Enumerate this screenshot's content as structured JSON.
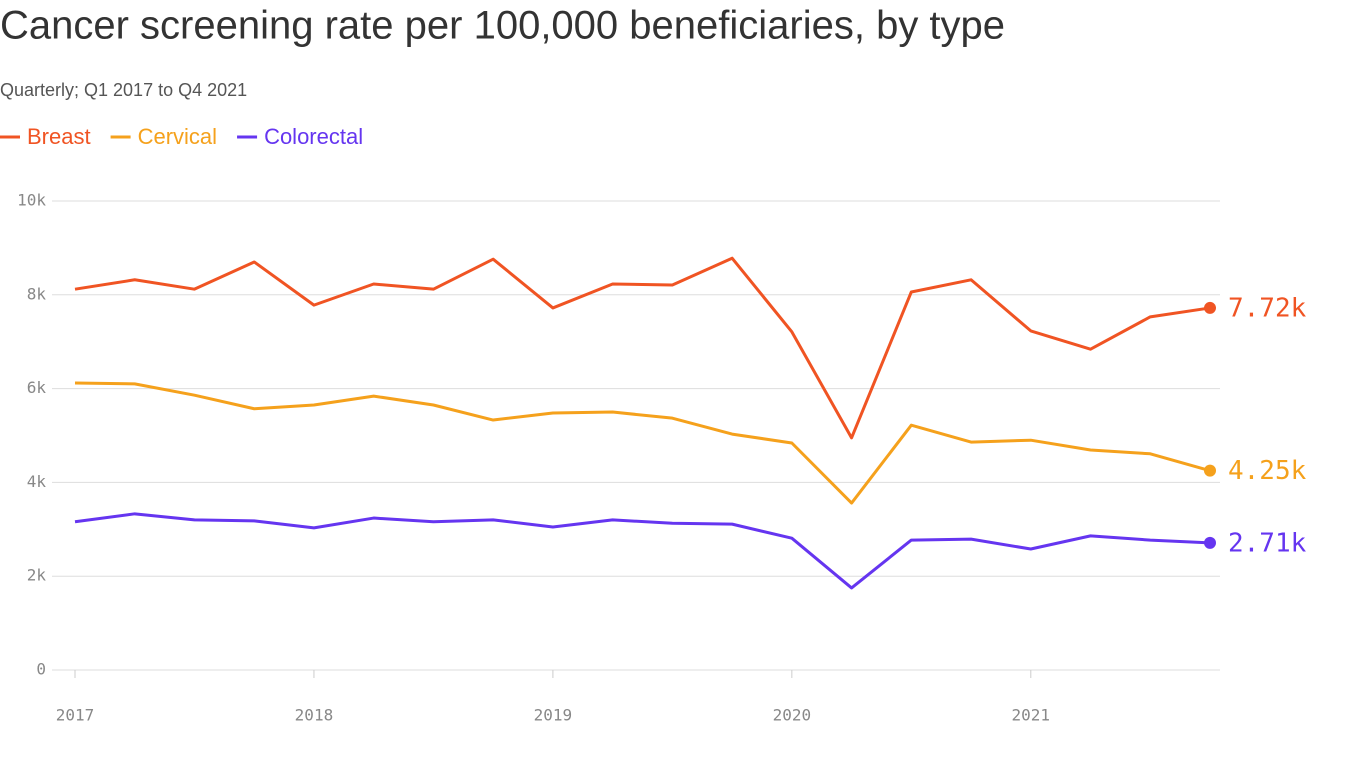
{
  "chart_data": {
    "type": "line",
    "title": "Cancer screening rate per 100,000 beneficiaries, by type",
    "subtitle": "Quarterly; Q1 2017 to Q4 2021",
    "x": [
      2017,
      2017.25,
      2017.5,
      2017.75,
      2018,
      2018.25,
      2018.5,
      2018.75,
      2019,
      2019.25,
      2019.5,
      2019.75,
      2020,
      2020.25,
      2020.5,
      2020.75,
      2021,
      2021.25,
      2021.5,
      2021.75
    ],
    "xlim": [
      2017,
      2021.75
    ],
    "xticks": [
      2017,
      2018,
      2019,
      2020,
      2021
    ],
    "ylim": [
      0,
      10000
    ],
    "yticks": [
      0,
      {
        "value": 2000,
        "label": "2k"
      },
      {
        "value": 4000,
        "label": "4k"
      },
      {
        "value": 6000,
        "label": "6k"
      },
      {
        "value": 8000,
        "label": "8k"
      },
      {
        "value": 10000,
        "label": "10k"
      }
    ],
    "grid": true,
    "series": [
      {
        "name": "Breast",
        "color": "#f05423",
        "values": [
          8120,
          8320,
          8120,
          8700,
          7780,
          8230,
          8120,
          8760,
          7720,
          8230,
          8210,
          8780,
          7210,
          4950,
          8060,
          8320,
          7230,
          6840,
          7530,
          7720
        ],
        "value_labels": [
          null,
          null,
          null,
          null,
          null,
          null,
          null,
          null,
          null,
          null,
          null,
          null,
          null,
          null,
          null,
          null,
          null,
          null,
          null,
          "7.72k"
        ]
      },
      {
        "name": "Cervical",
        "color": "#f5a11c",
        "values": [
          6120,
          6100,
          5860,
          5570,
          5650,
          5840,
          5650,
          5330,
          5480,
          5500,
          5370,
          5030,
          4840,
          3560,
          5220,
          4860,
          4900,
          4690,
          4610,
          4250
        ],
        "value_labels": [
          null,
          null,
          null,
          null,
          null,
          null,
          null,
          null,
          null,
          null,
          null,
          null,
          null,
          null,
          null,
          null,
          null,
          null,
          null,
          "4.25k"
        ]
      },
      {
        "name": "Colorectal",
        "color": "#6535f0",
        "values": [
          3160,
          3330,
          3200,
          3180,
          3030,
          3240,
          3160,
          3200,
          3050,
          3200,
          3130,
          3110,
          2810,
          1750,
          2770,
          2790,
          2580,
          2860,
          2770,
          2710
        ],
        "value_labels": [
          null,
          null,
          null,
          null,
          null,
          null,
          null,
          null,
          null,
          null,
          null,
          null,
          null,
          null,
          null,
          null,
          null,
          null,
          null,
          "2.71k"
        ]
      }
    ]
  }
}
